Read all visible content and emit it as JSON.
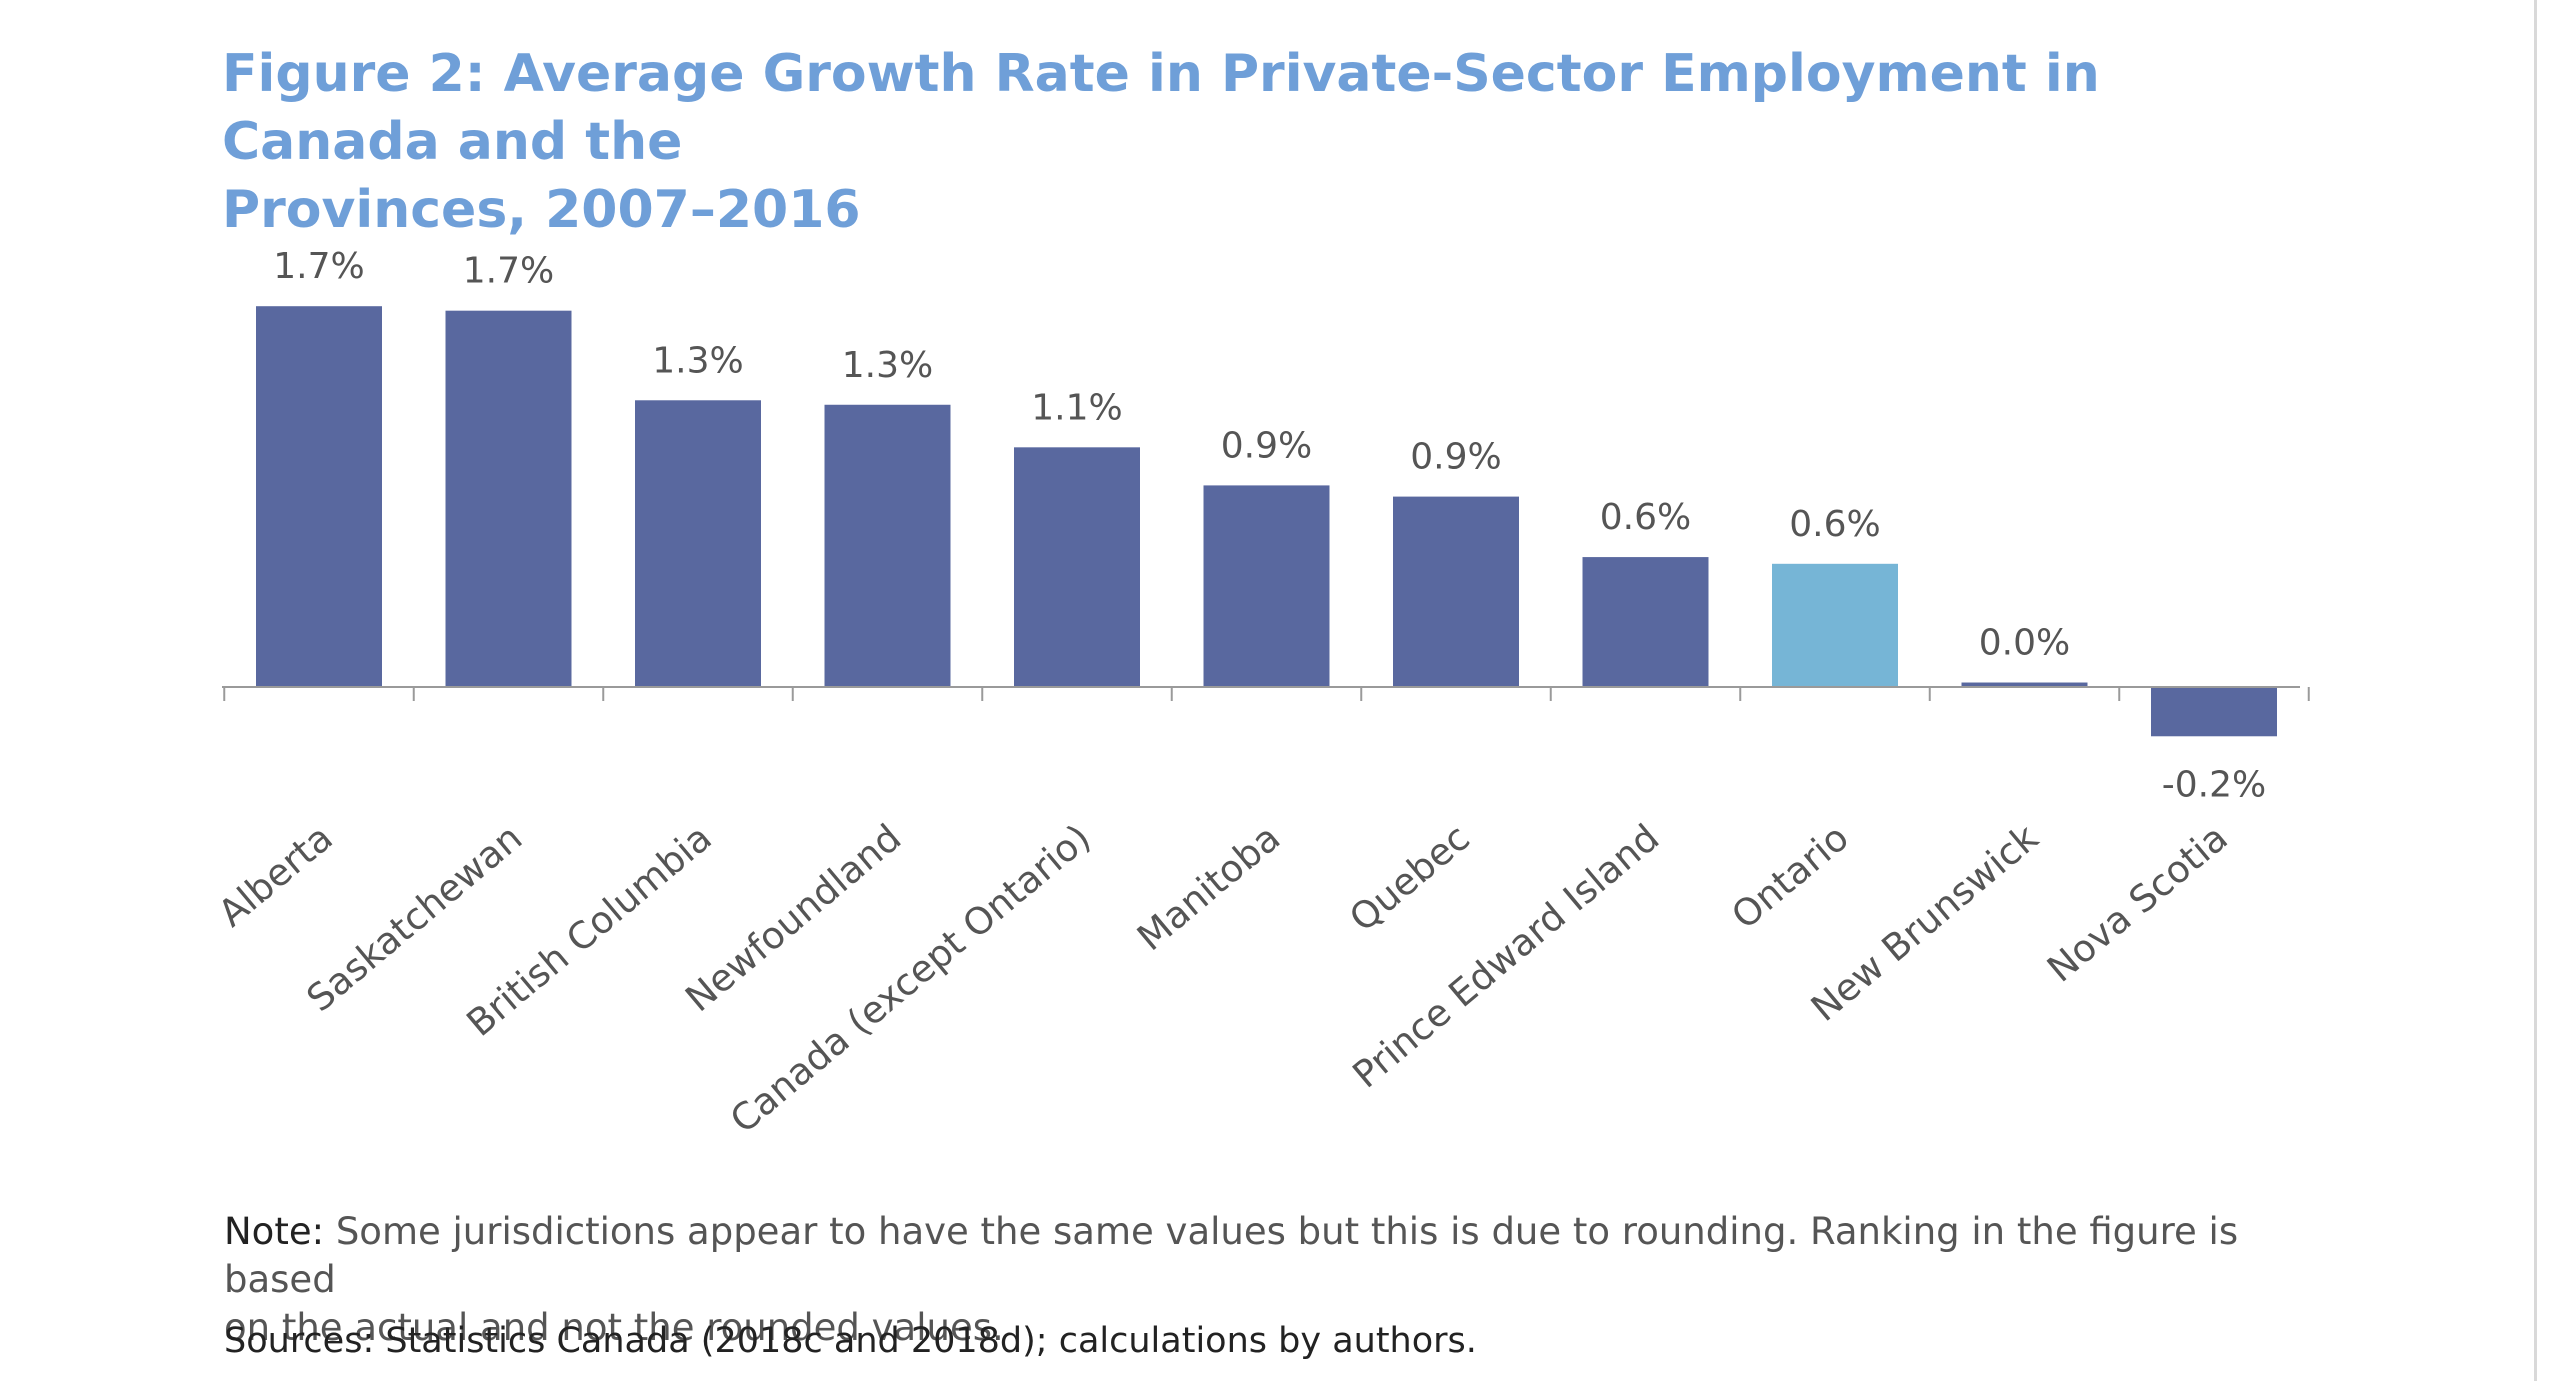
{
  "figure": {
    "title_line1": "Figure 2: Average Growth Rate in Private-Sector Employment in Canada and the",
    "title_line2": "Provinces, 2007–2016",
    "note_lead": "Note:",
    "note_text": " Some jurisdictions appear to have the same values but this is due to rounding. Ranking in the figure is based",
    "note_text_line2": "on the actual and not the rounded values.",
    "sources": "Sources: Statistics Canada (2018c and 2018d); calculations by authors."
  },
  "colors": {
    "bar": "#59689f",
    "highlight": "#76b5d6",
    "title": "#6f9fd8",
    "axis": "#9a9a9a",
    "label": "#555555"
  },
  "chart_data": {
    "type": "bar",
    "categories": [
      "Alberta",
      "Saskatchewan",
      "British Columbia",
      "Newfoundland",
      "Canada (except Ontario)",
      "Manitoba",
      "Quebec",
      "Prince Edward Island",
      "Ontario",
      "New Brunswick",
      "Nova Scotia"
    ],
    "values": [
      1.7,
      1.68,
      1.28,
      1.26,
      1.07,
      0.9,
      0.85,
      0.58,
      0.55,
      0.02,
      -0.22
    ],
    "data_labels": [
      "1.7%",
      "1.7%",
      "1.3%",
      "1.3%",
      "1.1%",
      "0.9%",
      "0.9%",
      "0.6%",
      "0.6%",
      "0.0%",
      "-0.2%"
    ],
    "highlight_category": "Ontario",
    "unit": "%",
    "ylim": [
      -0.3,
      1.8
    ],
    "grid": false,
    "legend": "none",
    "xlabel": "",
    "ylabel": ""
  }
}
